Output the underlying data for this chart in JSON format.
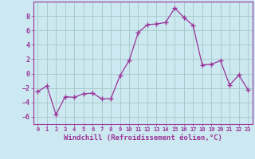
{
  "x": [
    0,
    1,
    2,
    3,
    4,
    5,
    6,
    7,
    8,
    9,
    10,
    11,
    12,
    13,
    14,
    15,
    16,
    17,
    18,
    19,
    20,
    21,
    22,
    23
  ],
  "y": [
    -2.5,
    -1.7,
    -5.7,
    -3.2,
    -3.3,
    -2.8,
    -2.7,
    -3.5,
    -3.5,
    -0.3,
    1.8,
    5.7,
    6.8,
    6.9,
    7.1,
    9.1,
    7.8,
    6.7,
    1.2,
    1.3,
    1.8,
    -1.6,
    -0.2,
    -2.2
  ],
  "line_color": "#993399",
  "marker_color": "#993399",
  "bg_color": "#cce8f0",
  "grid_color": "#aacccc",
  "xlabel": "Windchill (Refroidissement éolien,°C)",
  "ylim": [
    -7,
    10
  ],
  "xlim": [
    -0.5,
    23.5
  ],
  "yticks": [
    -6,
    -4,
    -2,
    0,
    2,
    4,
    6,
    8
  ],
  "xticks": [
    0,
    1,
    2,
    3,
    4,
    5,
    6,
    7,
    8,
    9,
    10,
    11,
    12,
    13,
    14,
    15,
    16,
    17,
    18,
    19,
    20,
    21,
    22,
    23
  ],
  "tick_color": "#993399",
  "label_color": "#993399",
  "font_name": "monospace",
  "xticklabel_fontsize": 5.0,
  "yticklabel_fontsize": 6.0,
  "xlabel_fontsize": 6.5
}
